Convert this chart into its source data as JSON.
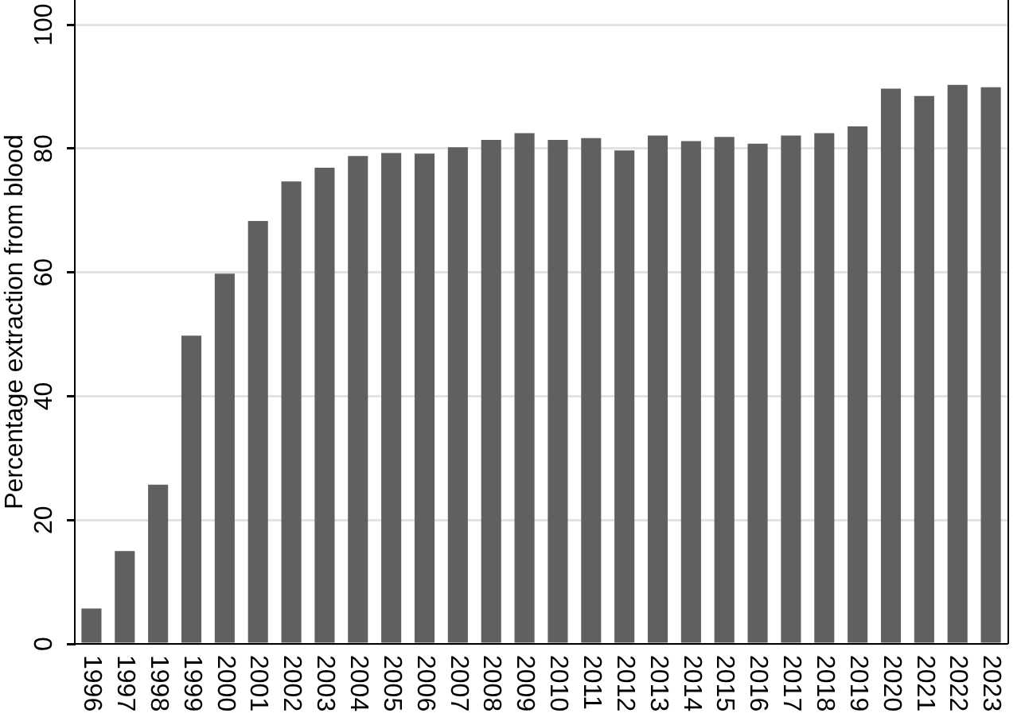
{
  "chart_data": {
    "type": "bar",
    "ylabel": "Percentage extraction from blood",
    "categories": [
      "1996",
      "1997",
      "1998",
      "1999",
      "2000",
      "2001",
      "2002",
      "2003",
      "2004",
      "2005",
      "2006",
      "2007",
      "2008",
      "2009",
      "2010",
      "2011",
      "2012",
      "2013",
      "2014",
      "2015",
      "2016",
      "2017",
      "2018",
      "2019",
      "2020",
      "2021",
      "2022",
      "2023"
    ],
    "values": [
      5.7,
      15.0,
      25.7,
      49.8,
      59.8,
      68.3,
      74.7,
      76.9,
      78.8,
      79.3,
      79.2,
      80.2,
      81.4,
      82.5,
      81.4,
      81.7,
      79.7,
      82.1,
      81.2,
      81.9,
      80.8,
      82.1,
      82.5,
      83.6,
      89.7,
      88.5,
      90.3,
      89.9
    ],
    "color": "#606060",
    "ylim": [
      0,
      104
    ],
    "yticks": [
      0,
      20,
      40,
      60,
      80,
      100
    ],
    "grid": "y"
  }
}
